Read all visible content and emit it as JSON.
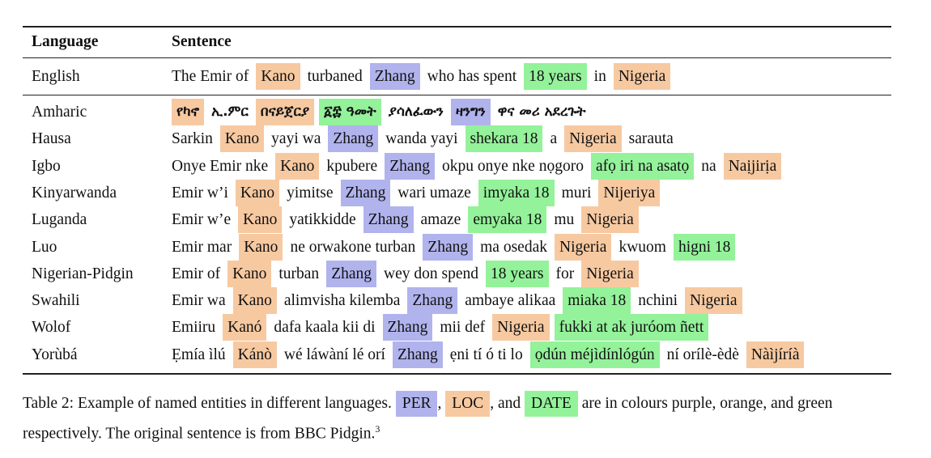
{
  "table": {
    "header": {
      "language": "Language",
      "sentence": "Sentence"
    },
    "source_row": {
      "language": "English",
      "tokens": [
        {
          "t": "The Emir of",
          "e": ""
        },
        {
          "t": "Kano",
          "e": "LOC"
        },
        {
          "t": "turbaned",
          "e": ""
        },
        {
          "t": "Zhang",
          "e": "PER"
        },
        {
          "t": "who has spent",
          "e": ""
        },
        {
          "t": "18 years",
          "e": "DATE"
        },
        {
          "t": "in",
          "e": ""
        },
        {
          "t": "Nigeria",
          "e": "LOC"
        }
      ]
    },
    "rows": [
      {
        "language": "Amharic",
        "script": "ethiopic",
        "tokens": [
          {
            "t": "የካኖ",
            "e": "LOC"
          },
          {
            "t": "ኢ.ምር",
            "e": ""
          },
          {
            "t": "በናይጀርያ",
            "e": "LOC"
          },
          {
            "t": "፩፰ ዓመት",
            "e": "DATE"
          },
          {
            "t": "ያሳለፈውን",
            "e": ""
          },
          {
            "t": "ዛንግን",
            "e": "PER"
          },
          {
            "t": "ዋና መሪ አደረጉት",
            "e": ""
          }
        ]
      },
      {
        "language": "Hausa",
        "tokens": [
          {
            "t": "Sarkin",
            "e": ""
          },
          {
            "t": "Kano",
            "e": "LOC"
          },
          {
            "t": "yayi wa",
            "e": ""
          },
          {
            "t": "Zhang",
            "e": "PER"
          },
          {
            "t": "wanda yayi",
            "e": ""
          },
          {
            "t": "shekara 18",
            "e": "DATE"
          },
          {
            "t": "a",
            "e": ""
          },
          {
            "t": "Nigeria",
            "e": "LOC"
          },
          {
            "t": "sarauta",
            "e": ""
          }
        ]
      },
      {
        "language": "Igbo",
        "tokens": [
          {
            "t": "Onye Emir nke",
            "e": ""
          },
          {
            "t": "Kano",
            "e": "LOC"
          },
          {
            "t": "kpubere",
            "e": ""
          },
          {
            "t": "Zhang",
            "e": "PER"
          },
          {
            "t": "okpu onye nke nọgoro",
            "e": ""
          },
          {
            "t": "afọ iri na asatọ",
            "e": "DATE"
          },
          {
            "t": "na",
            "e": ""
          },
          {
            "t": "Naịjirịa",
            "e": "LOC"
          }
        ]
      },
      {
        "language": "Kinyarwanda",
        "tokens": [
          {
            "t": "Emir w’i",
            "e": ""
          },
          {
            "t": "Kano",
            "e": "LOC"
          },
          {
            "t": "yimitse",
            "e": ""
          },
          {
            "t": "Zhang",
            "e": "PER"
          },
          {
            "t": "wari umaze",
            "e": ""
          },
          {
            "t": "imyaka 18",
            "e": "DATE"
          },
          {
            "t": "muri",
            "e": ""
          },
          {
            "t": "Nijeriya",
            "e": "LOC"
          }
        ]
      },
      {
        "language": "Luganda",
        "tokens": [
          {
            "t": "Emir w’e",
            "e": ""
          },
          {
            "t": "Kano",
            "e": "LOC"
          },
          {
            "t": "yatikkidde",
            "e": ""
          },
          {
            "t": "Zhang",
            "e": "PER"
          },
          {
            "t": "amaze",
            "e": ""
          },
          {
            "t": "emyaka 18",
            "e": "DATE"
          },
          {
            "t": "mu",
            "e": ""
          },
          {
            "t": "Nigeria",
            "e": "LOC"
          }
        ]
      },
      {
        "language": "Luo",
        "tokens": [
          {
            "t": "Emir mar",
            "e": ""
          },
          {
            "t": "Kano",
            "e": "LOC"
          },
          {
            "t": "ne orwakone turban",
            "e": ""
          },
          {
            "t": "Zhang",
            "e": "PER"
          },
          {
            "t": "ma osedak",
            "e": ""
          },
          {
            "t": "Nigeria",
            "e": "LOC"
          },
          {
            "t": "kwuom",
            "e": ""
          },
          {
            "t": "higni 18",
            "e": "DATE"
          }
        ]
      },
      {
        "language": "Nigerian-Pidgin",
        "tokens": [
          {
            "t": "Emir of",
            "e": ""
          },
          {
            "t": "Kano",
            "e": "LOC"
          },
          {
            "t": "turban",
            "e": ""
          },
          {
            "t": "Zhang",
            "e": "PER"
          },
          {
            "t": "wey don spend",
            "e": ""
          },
          {
            "t": "18 years",
            "e": "DATE"
          },
          {
            "t": "for",
            "e": ""
          },
          {
            "t": "Nigeria",
            "e": "LOC"
          }
        ]
      },
      {
        "language": "Swahili",
        "tokens": [
          {
            "t": "Emir wa",
            "e": ""
          },
          {
            "t": "Kano",
            "e": "LOC"
          },
          {
            "t": "alimvisha kilemba",
            "e": ""
          },
          {
            "t": "Zhang",
            "e": "PER"
          },
          {
            "t": "ambaye alikaa",
            "e": ""
          },
          {
            "t": "miaka 18",
            "e": "DATE"
          },
          {
            "t": "nchini",
            "e": ""
          },
          {
            "t": "Nigeria",
            "e": "LOC"
          }
        ]
      },
      {
        "language": "Wolof",
        "tokens": [
          {
            "t": "Emiiru",
            "e": ""
          },
          {
            "t": "Kanó",
            "e": "LOC"
          },
          {
            "t": "dafa kaala kii di",
            "e": ""
          },
          {
            "t": "Zhang",
            "e": "PER"
          },
          {
            "t": "mii def",
            "e": ""
          },
          {
            "t": "Nigeria",
            "e": "LOC"
          },
          {
            "t": "fukki at ak juróom ñett",
            "e": "DATE"
          }
        ]
      },
      {
        "language": "Yorùbá",
        "tokens": [
          {
            "t": "Ẹmía ìlú",
            "e": ""
          },
          {
            "t": "Kánò",
            "e": "LOC"
          },
          {
            "t": "wé láwàní lé orí",
            "e": ""
          },
          {
            "t": "Zhang",
            "e": "PER"
          },
          {
            "t": "ẹni tí ó ti lo",
            "e": ""
          },
          {
            "t": "ọdún méjìdínlógún",
            "e": "DATE"
          },
          {
            "t": "ní orílè-èdè",
            "e": ""
          },
          {
            "t": "Nàìjíríà",
            "e": "LOC"
          }
        ]
      }
    ]
  },
  "caption": {
    "prefix": "Table 2: Example of named entities in different languages.",
    "per": "PER",
    "comma": ",",
    "loc": "LOC",
    "and": ", and",
    "date": "DATE",
    "suffix": "are in colours purple, orange, and green respectively. The original sentence is from BBC Pidgin.",
    "footnote": "3"
  },
  "colors": {
    "PER": "#b1b3ed",
    "LOC": "#f7c9a1",
    "DATE": "#94f29a"
  }
}
